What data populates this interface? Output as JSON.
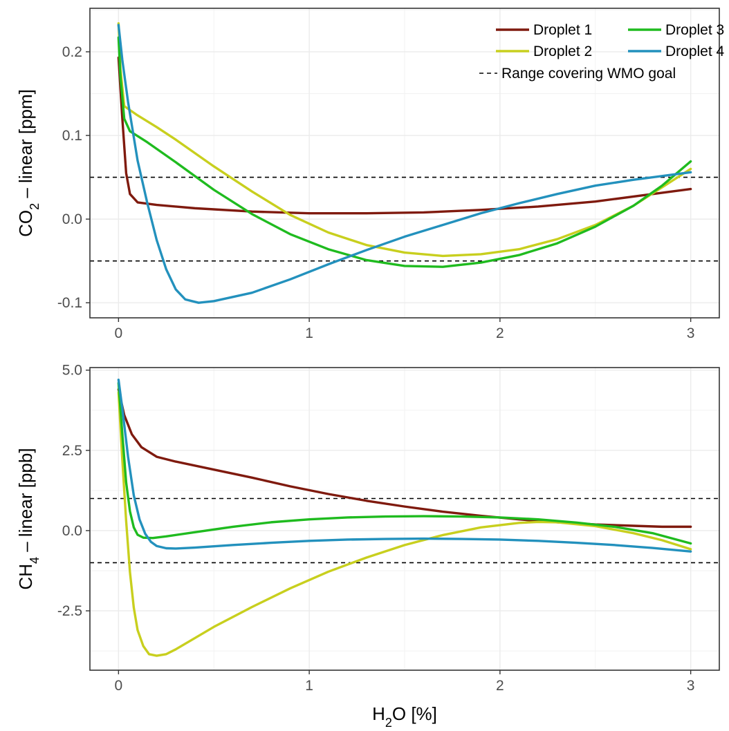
{
  "chart_data": [
    {
      "type": "line",
      "ylabel": {
        "pre": "CO",
        "sub": "2",
        "post": " – linear [ppm]"
      },
      "xlim": [
        -0.15,
        3.15
      ],
      "ylim": [
        -0.118,
        0.252
      ],
      "xticks": [
        0,
        1,
        2,
        3
      ],
      "xtick_labels": [
        "0",
        "1",
        "2",
        "3"
      ],
      "yticks": [
        -0.1,
        0.0,
        0.1,
        0.2
      ],
      "ytick_labels": [
        "-0.1",
        "0.0",
        "0.1",
        "0.2"
      ],
      "grid": true,
      "reference_lines": [
        0.05,
        -0.05
      ],
      "series": [
        {
          "name": "Droplet 1",
          "color": "#7f1a0e",
          "points": [
            [
              0,
              0.193
            ],
            [
              0.02,
              0.12
            ],
            [
              0.04,
              0.055
            ],
            [
              0.06,
              0.03
            ],
            [
              0.1,
              0.02
            ],
            [
              0.2,
              0.017
            ],
            [
              0.4,
              0.013
            ],
            [
              0.7,
              0.009
            ],
            [
              1.0,
              0.007
            ],
            [
              1.3,
              0.007
            ],
            [
              1.6,
              0.008
            ],
            [
              1.9,
              0.011
            ],
            [
              2.2,
              0.015
            ],
            [
              2.5,
              0.021
            ],
            [
              2.8,
              0.03
            ],
            [
              3.0,
              0.036
            ]
          ]
        },
        {
          "name": "Droplet 2",
          "color": "#c8cf1e",
          "points": [
            [
              0,
              0.234
            ],
            [
              0.01,
              0.18
            ],
            [
              0.03,
              0.135
            ],
            [
              0.1,
              0.124
            ],
            [
              0.2,
              0.11
            ],
            [
              0.3,
              0.095
            ],
            [
              0.5,
              0.063
            ],
            [
              0.7,
              0.033
            ],
            [
              0.9,
              0.005
            ],
            [
              1.1,
              -0.016
            ],
            [
              1.3,
              -0.031
            ],
            [
              1.5,
              -0.04
            ],
            [
              1.7,
              -0.044
            ],
            [
              1.9,
              -0.042
            ],
            [
              2.1,
              -0.036
            ],
            [
              2.3,
              -0.024
            ],
            [
              2.5,
              -0.007
            ],
            [
              2.7,
              0.016
            ],
            [
              2.85,
              0.038
            ],
            [
              3.0,
              0.06
            ]
          ]
        },
        {
          "name": "Droplet 3",
          "color": "#1fbb1f",
          "points": [
            [
              0,
              0.217
            ],
            [
              0.01,
              0.17
            ],
            [
              0.03,
              0.12
            ],
            [
              0.06,
              0.105
            ],
            [
              0.15,
              0.092
            ],
            [
              0.3,
              0.068
            ],
            [
              0.5,
              0.035
            ],
            [
              0.7,
              0.006
            ],
            [
              0.9,
              -0.018
            ],
            [
              1.1,
              -0.036
            ],
            [
              1.3,
              -0.049
            ],
            [
              1.5,
              -0.056
            ],
            [
              1.7,
              -0.057
            ],
            [
              1.9,
              -0.052
            ],
            [
              2.1,
              -0.043
            ],
            [
              2.3,
              -0.029
            ],
            [
              2.5,
              -0.009
            ],
            [
              2.7,
              0.016
            ],
            [
              2.85,
              0.04
            ],
            [
              3.0,
              0.069
            ]
          ]
        },
        {
          "name": "Droplet 4",
          "color": "#2391bd",
          "points": [
            [
              0,
              0.232
            ],
            [
              0.02,
              0.19
            ],
            [
              0.05,
              0.14
            ],
            [
              0.1,
              0.07
            ],
            [
              0.15,
              0.02
            ],
            [
              0.2,
              -0.025
            ],
            [
              0.25,
              -0.06
            ],
            [
              0.3,
              -0.084
            ],
            [
              0.35,
              -0.096
            ],
            [
              0.42,
              -0.1
            ],
            [
              0.5,
              -0.098
            ],
            [
              0.7,
              -0.088
            ],
            [
              0.9,
              -0.072
            ],
            [
              1.1,
              -0.054
            ],
            [
              1.3,
              -0.037
            ],
            [
              1.5,
              -0.021
            ],
            [
              1.7,
              -0.007
            ],
            [
              1.9,
              0.007
            ],
            [
              2.1,
              0.019
            ],
            [
              2.3,
              0.03
            ],
            [
              2.5,
              0.04
            ],
            [
              2.7,
              0.047
            ],
            [
              2.9,
              0.053
            ],
            [
              3.0,
              0.056
            ]
          ]
        }
      ]
    },
    {
      "type": "line",
      "xlabel": {
        "pre": "H",
        "sub": "2",
        "post": "O [%]"
      },
      "ylabel": {
        "pre": "CH",
        "sub": "4",
        "post": " – linear [ppb]"
      },
      "xlim": [
        -0.15,
        3.15
      ],
      "ylim": [
        -4.35,
        5.08
      ],
      "xticks": [
        0,
        1,
        2,
        3
      ],
      "xtick_labels": [
        "0",
        "1",
        "2",
        "3"
      ],
      "yticks": [
        -2.5,
        0.0,
        2.5,
        5.0
      ],
      "ytick_labels": [
        "-2.5",
        "0.0",
        "2.5",
        "5.0"
      ],
      "grid": true,
      "reference_lines": [
        1,
        -1
      ],
      "series": [
        {
          "name": "Droplet 1",
          "color": "#7f1a0e",
          "points": [
            [
              0,
              4.4
            ],
            [
              0.03,
              3.6
            ],
            [
              0.07,
              3.0
            ],
            [
              0.12,
              2.6
            ],
            [
              0.2,
              2.3
            ],
            [
              0.3,
              2.15
            ],
            [
              0.5,
              1.9
            ],
            [
              0.7,
              1.65
            ],
            [
              0.9,
              1.38
            ],
            [
              1.1,
              1.14
            ],
            [
              1.3,
              0.93
            ],
            [
              1.5,
              0.75
            ],
            [
              1.7,
              0.59
            ],
            [
              1.9,
              0.46
            ],
            [
              2.1,
              0.35
            ],
            [
              2.3,
              0.26
            ],
            [
              2.5,
              0.19
            ],
            [
              2.7,
              0.15
            ],
            [
              2.85,
              0.12
            ],
            [
              3.0,
              0.12
            ]
          ]
        },
        {
          "name": "Droplet 2",
          "color": "#c8cf1e",
          "points": [
            [
              0,
              4.3
            ],
            [
              0.02,
              2.2
            ],
            [
              0.04,
              0.3
            ],
            [
              0.06,
              -1.3
            ],
            [
              0.08,
              -2.4
            ],
            [
              0.1,
              -3.1
            ],
            [
              0.13,
              -3.6
            ],
            [
              0.16,
              -3.85
            ],
            [
              0.2,
              -3.9
            ],
            [
              0.25,
              -3.85
            ],
            [
              0.3,
              -3.7
            ],
            [
              0.4,
              -3.35
            ],
            [
              0.5,
              -3.0
            ],
            [
              0.7,
              -2.38
            ],
            [
              0.9,
              -1.8
            ],
            [
              1.1,
              -1.28
            ],
            [
              1.3,
              -0.84
            ],
            [
              1.5,
              -0.45
            ],
            [
              1.7,
              -0.14
            ],
            [
              1.9,
              0.1
            ],
            [
              2.1,
              0.24
            ],
            [
              2.2,
              0.27
            ],
            [
              2.3,
              0.26
            ],
            [
              2.5,
              0.14
            ],
            [
              2.7,
              -0.08
            ],
            [
              2.85,
              -0.3
            ],
            [
              3.0,
              -0.58
            ]
          ]
        },
        {
          "name": "Droplet 3",
          "color": "#1fbb1f",
          "points": [
            [
              0,
              4.6
            ],
            [
              0.02,
              3.0
            ],
            [
              0.04,
              1.5
            ],
            [
              0.06,
              0.6
            ],
            [
              0.08,
              0.1
            ],
            [
              0.1,
              -0.13
            ],
            [
              0.13,
              -0.22
            ],
            [
              0.18,
              -0.23
            ],
            [
              0.25,
              -0.18
            ],
            [
              0.4,
              -0.05
            ],
            [
              0.6,
              0.12
            ],
            [
              0.8,
              0.26
            ],
            [
              1.0,
              0.35
            ],
            [
              1.2,
              0.41
            ],
            [
              1.4,
              0.44
            ],
            [
              1.6,
              0.45
            ],
            [
              1.8,
              0.44
            ],
            [
              2.0,
              0.41
            ],
            [
              2.2,
              0.35
            ],
            [
              2.4,
              0.25
            ],
            [
              2.6,
              0.12
            ],
            [
              2.8,
              -0.08
            ],
            [
              3.0,
              -0.4
            ]
          ]
        },
        {
          "name": "Droplet 4",
          "color": "#2391bd",
          "points": [
            [
              0,
              4.7
            ],
            [
              0.02,
              3.8
            ],
            [
              0.05,
              2.3
            ],
            [
              0.08,
              1.1
            ],
            [
              0.11,
              0.35
            ],
            [
              0.14,
              -0.1
            ],
            [
              0.17,
              -0.35
            ],
            [
              0.2,
              -0.48
            ],
            [
              0.25,
              -0.55
            ],
            [
              0.3,
              -0.56
            ],
            [
              0.4,
              -0.53
            ],
            [
              0.6,
              -0.45
            ],
            [
              0.8,
              -0.38
            ],
            [
              1.0,
              -0.32
            ],
            [
              1.2,
              -0.28
            ],
            [
              1.4,
              -0.26
            ],
            [
              1.6,
              -0.25
            ],
            [
              1.8,
              -0.26
            ],
            [
              2.0,
              -0.28
            ],
            [
              2.2,
              -0.32
            ],
            [
              2.4,
              -0.38
            ],
            [
              2.6,
              -0.45
            ],
            [
              2.8,
              -0.54
            ],
            [
              3.0,
              -0.65
            ]
          ]
        }
      ]
    }
  ],
  "legend": {
    "placement": "top-right",
    "items": [
      {
        "label": "Droplet 1",
        "color": "#7f1a0e",
        "style": "solid"
      },
      {
        "label": "Droplet 3",
        "color": "#1fbb1f",
        "style": "solid"
      },
      {
        "label": "Droplet 2",
        "color": "#c8cf1e",
        "style": "solid"
      },
      {
        "label": "Droplet 4",
        "color": "#2391bd",
        "style": "solid"
      },
      {
        "label": "Range covering WMO goal",
        "color": "#000000",
        "style": "dashed"
      }
    ]
  }
}
